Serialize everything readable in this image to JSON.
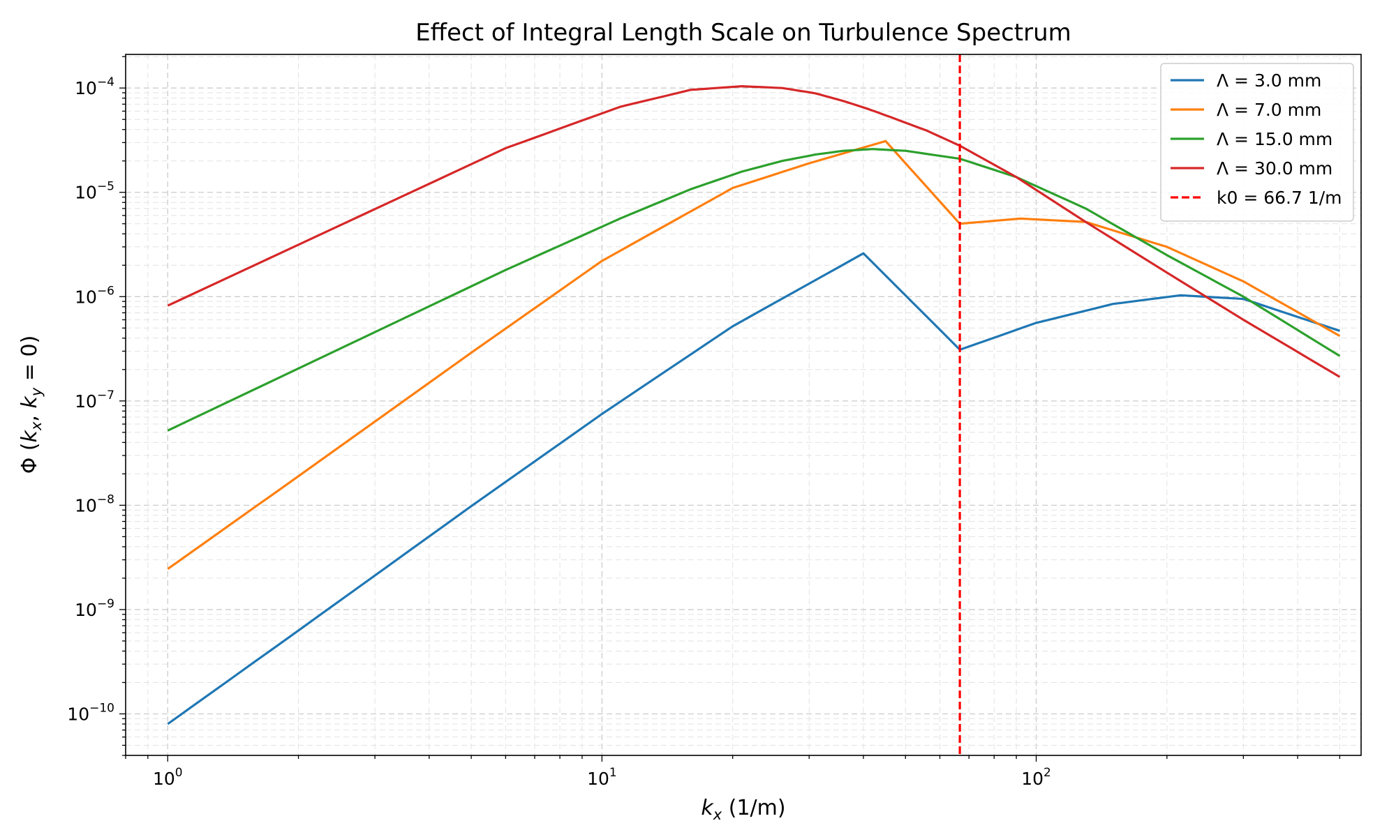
{
  "chart_data": {
    "type": "line",
    "title": "Effect of Integral Length Scale on Turbulence Spectrum",
    "xlabel": "k_x (1/m)",
    "ylabel": "Φ (k_x, k_y = 0)",
    "xscale": "log",
    "yscale": "log",
    "xlim": [
      0.8,
      560
    ],
    "ylim": [
      4e-11,
      0.00021
    ],
    "grid": true,
    "legend_position": "top-right",
    "x_ticks": [
      {
        "value": 1,
        "mantissa": "10",
        "exponent": "0"
      },
      {
        "value": 10,
        "mantissa": "10",
        "exponent": "1"
      },
      {
        "value": 100,
        "mantissa": "10",
        "exponent": "2"
      }
    ],
    "y_ticks": [
      {
        "value": 1e-10,
        "mantissa": "10",
        "exponent": "−10"
      },
      {
        "value": 1e-09,
        "mantissa": "10",
        "exponent": "−9"
      },
      {
        "value": 1e-08,
        "mantissa": "10",
        "exponent": "−8"
      },
      {
        "value": 1e-07,
        "mantissa": "10",
        "exponent": "−7"
      },
      {
        "value": 1e-06,
        "mantissa": "10",
        "exponent": "−6"
      },
      {
        "value": 1e-05,
        "mantissa": "10",
        "exponent": "−5"
      },
      {
        "value": 0.0001,
        "mantissa": "10",
        "exponent": "−4"
      }
    ],
    "series": [
      {
        "name": "Λ = 3.0 mm",
        "color": "#1f77b4",
        "x": [
          1,
          2,
          5,
          10,
          20,
          40,
          66.7,
          100,
          150,
          215,
          300,
          500
        ],
        "y": [
          8e-11,
          6.3e-10,
          9.8e-09,
          7.5e-08,
          5.2e-07,
          2.6e-06,
          3.1e-07,
          5.6e-07,
          8.5e-07,
          1.03e-06,
          9.5e-07,
          4.7e-07
        ]
      },
      {
        "name": "Λ = 7.0 mm",
        "color": "#ff7f0e",
        "x": [
          1,
          2,
          5,
          10,
          20,
          30,
          45,
          66.7,
          92,
          130,
          200,
          300,
          500
        ],
        "y": [
          2.45e-09,
          1.9e-08,
          2.9e-07,
          2.2e-06,
          1.1e-05,
          1.9e-05,
          3.1e-05,
          5e-06,
          5.6e-06,
          5.2e-06,
          3e-06,
          1.4e-06,
          4.2e-07
        ]
      },
      {
        "name": "Λ = 15.0 mm",
        "color": "#2ca02c",
        "x": [
          1,
          6,
          11,
          16,
          21,
          26,
          31,
          36,
          42,
          50,
          66.7,
          90,
          130,
          200,
          300,
          500
        ],
        "y": [
          5.2e-08,
          1.8e-06,
          5.6e-06,
          1.07e-05,
          1.58e-05,
          2e-05,
          2.3e-05,
          2.5e-05,
          2.6e-05,
          2.5e-05,
          2.1e-05,
          1.4e-05,
          7e-06,
          2.5e-06,
          1e-06,
          2.7e-07
        ]
      },
      {
        "name": "Λ = 30.0 mm",
        "color": "#d62728",
        "x": [
          1,
          6,
          11,
          16,
          21,
          26,
          31,
          36,
          41,
          46,
          56,
          66.7,
          90,
          130,
          200,
          300,
          500
        ],
        "y": [
          8.2e-07,
          2.65e-05,
          6.6e-05,
          9.6e-05,
          0.000104,
          0.0001,
          8.9e-05,
          7.5e-05,
          6.3e-05,
          5.3e-05,
          3.9e-05,
          2.8e-05,
          1.4e-05,
          5.2e-06,
          1.7e-06,
          6e-07,
          1.7e-07
        ]
      }
    ],
    "reference_lines": [
      {
        "name": "k0 = 66.7 1/m",
        "x": 66.7,
        "color": "#ff0000",
        "style": "dashed"
      }
    ]
  }
}
